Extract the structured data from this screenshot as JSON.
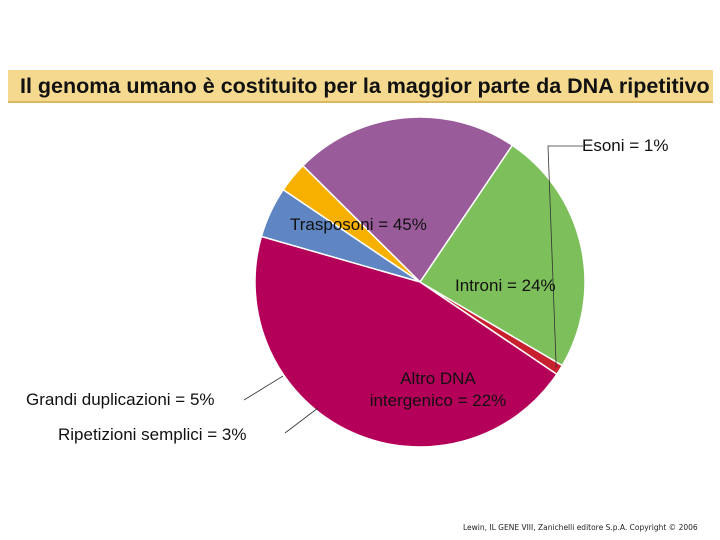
{
  "title": "Il genoma umano è costituito per la maggior parte da DNA ripetitivo",
  "chart_data": {
    "type": "pie",
    "title": "Il genoma umano è costituito per la maggior parte da DNA ripetitivo",
    "slices": [
      {
        "name": "Esoni",
        "value": 1,
        "color": "#c8202e",
        "label_lines": [
          "Esoni = 1%"
        ]
      },
      {
        "name": "Introni",
        "value": 24,
        "color": "#7dbf5a",
        "label_lines": [
          "Introni = 24%"
        ]
      },
      {
        "name": "Altro DNA intergenico",
        "value": 22,
        "color": "#9a5b9a",
        "label_lines": [
          "Altro DNA",
          "intergenico = 22%"
        ]
      },
      {
        "name": "Ripetizioni semplici",
        "value": 3,
        "color": "#f7b000",
        "label_lines": [
          "Ripetizioni semplici = 3%"
        ]
      },
      {
        "name": "Grandi duplicazioni",
        "value": 5,
        "color": "#5f86c3",
        "label_lines": [
          "Grandi duplicazioni = 5%"
        ]
      },
      {
        "name": "Trasposoni",
        "value": 45,
        "color": "#b5005a",
        "label_lines": [
          "Trasposoni = 45%"
        ]
      }
    ]
  },
  "credit": "Lewin, IL GENE VIII, Zanichelli editore S.p.A. Copyright © 2006"
}
